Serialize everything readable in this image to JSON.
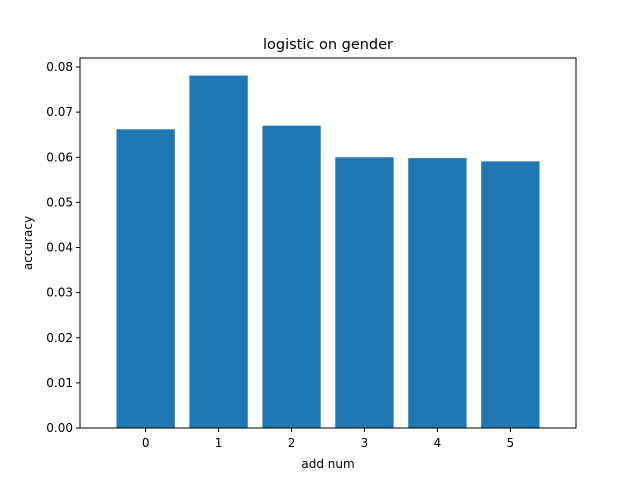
{
  "chart_data": {
    "type": "bar",
    "title": "logistic on gender",
    "xlabel": "add num",
    "ylabel": "accuracy",
    "categories": [
      "0",
      "1",
      "2",
      "3",
      "4",
      "5"
    ],
    "values": [
      0.0662,
      0.0781,
      0.067,
      0.06,
      0.0598,
      0.0591
    ],
    "ylim": [
      0,
      0.082
    ],
    "yticks": [
      0.0,
      0.01,
      0.02,
      0.03,
      0.04,
      0.05,
      0.06,
      0.07,
      0.08
    ],
    "ytick_labels": [
      "0.00",
      "0.01",
      "0.02",
      "0.03",
      "0.04",
      "0.05",
      "0.06",
      "0.07",
      "0.08"
    ],
    "bar_color": "#1f77b4",
    "grid": false,
    "legend": "none"
  }
}
